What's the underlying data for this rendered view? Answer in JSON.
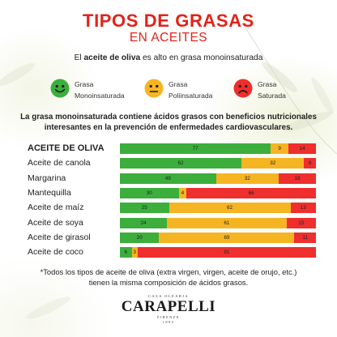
{
  "header": {
    "title": "TIPOS DE GRASAS",
    "subtitle": "EN ACEITES"
  },
  "intro": {
    "pre": "El ",
    "strong": "aceite de oliva",
    "post": " es alto en grasa monoinsaturada"
  },
  "legend": [
    {
      "line1": "Grasa",
      "line2": "Monoinsaturada",
      "color": "#3cae3c",
      "icon": "happy-face-icon"
    },
    {
      "line1": "Grasa",
      "line2": "Poliinsaturada",
      "color": "#f5b523",
      "icon": "neutral-face-icon"
    },
    {
      "line1": "Grasa",
      "line2": "Saturada",
      "color": "#ef2e2e",
      "icon": "sad-face-icon"
    }
  ],
  "statement": {
    "line1": "La grasa monoinsaturada contiene ácidos grasos con beneficios nutricionales",
    "line2": "interesantes en la prevención de enfermedades cardiovasculares."
  },
  "footnote": {
    "line1": "*Todos los tipos de aceite de oliva (extra virgen, virgen, aceite de orujo, etc.)",
    "line2": "tienen la misma composición de ácidos grasos."
  },
  "logo": {
    "top": "CASA OLEARIA",
    "brand": "CARAPELLI",
    "bottom1": "FIRENZE",
    "bottom2": "1893"
  },
  "colors": {
    "mono": "#3cae3c",
    "poly": "#f5b523",
    "sat": "#ef2e2e",
    "accent": "#e2231a"
  },
  "chart_data": {
    "type": "bar",
    "orientation": "horizontal",
    "stacked": true,
    "categories": [
      "ACEITE DE OLIVA",
      "Aceite de canola",
      "Margarina",
      "Mantequilla",
      "Aceite de maíz",
      "Aceite de soya",
      "Aceite de girasol",
      "Aceite de coco"
    ],
    "series": [
      {
        "name": "Grasa Monoinsaturada",
        "color": "#3cae3c",
        "values": [
          77,
          62,
          49,
          30,
          25,
          24,
          20,
          6
        ]
      },
      {
        "name": "Grasa Poliinsaturada",
        "color": "#f5b523",
        "values": [
          9,
          32,
          32,
          4,
          62,
          61,
          69,
          3
        ]
      },
      {
        "name": "Grasa Saturada",
        "color": "#ef2e2e",
        "values": [
          14,
          6,
          19,
          66,
          13,
          15,
          11,
          91
        ]
      }
    ],
    "xlim": [
      0,
      100
    ],
    "grid": false,
    "legend": "top"
  }
}
